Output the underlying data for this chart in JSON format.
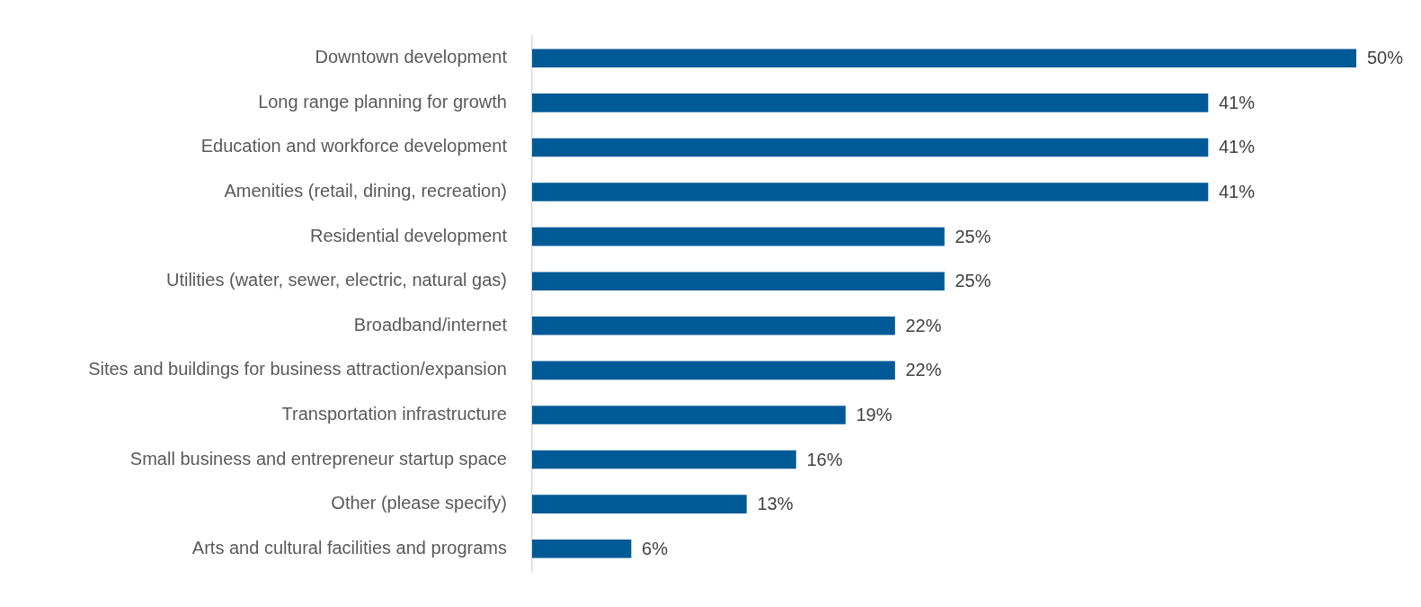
{
  "chart_data": {
    "type": "bar",
    "orientation": "horizontal",
    "categories": [
      "Downtown development",
      "Long range planning for growth",
      "Education and workforce development",
      "Amenities (retail, dining, recreation)",
      "Residential development",
      "Utilities (water, sewer, electric, natural gas)",
      "Broadband/internet",
      "Sites and buildings for business attraction/expansion",
      "Transportation infrastructure",
      "Small business and entrepreneur startup space",
      "Other (please specify)",
      "Arts and cultural facilities and programs"
    ],
    "values": [
      50,
      41,
      41,
      41,
      25,
      25,
      22,
      22,
      19,
      16,
      13,
      6
    ],
    "value_labels": [
      "50%",
      "41%",
      "41%",
      "41%",
      "25%",
      "25%",
      "22%",
      "22%",
      "19%",
      "16%",
      "13%",
      "6%"
    ],
    "color": "#005a96",
    "grid": false,
    "legend": false,
    "tick_labels": "y"
  }
}
